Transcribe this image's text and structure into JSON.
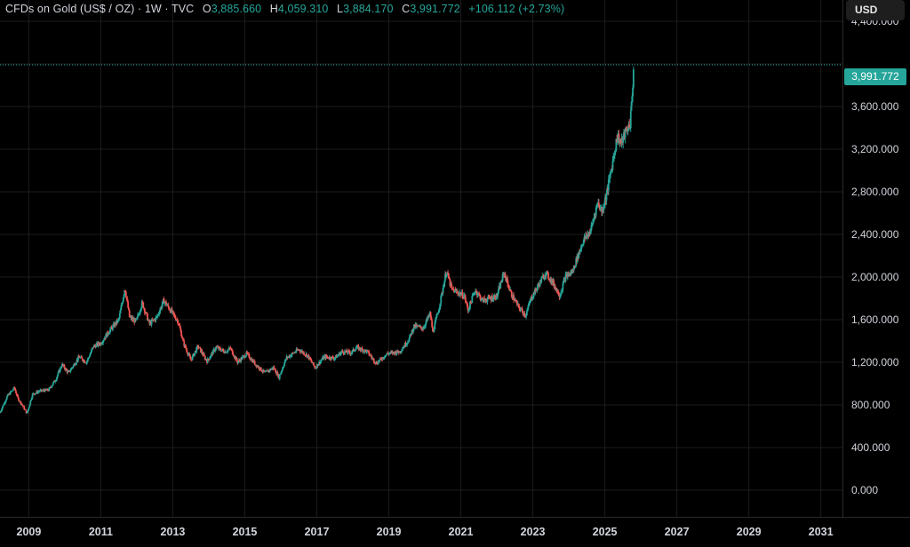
{
  "legend": {
    "symbol": "CFDs on Gold (US$ / OZ)",
    "interval": "1W",
    "source": "TVC",
    "open_label": "O",
    "open_value": "3,885.660",
    "high_label": "H",
    "high_value": "4,059.310",
    "low_label": "L",
    "low_value": "3,884.170",
    "close_label": "C",
    "close_value": "3,991.772",
    "change": "+106.112 (+2.73%)"
  },
  "currency_button": "USD",
  "last_price_tag": "3,991.772",
  "colors": {
    "background": "#000000",
    "up": "#26a69a",
    "down": "#ef5350",
    "grid": "#1c1c1c",
    "text": "#d1d4dc"
  },
  "chart_data": {
    "type": "candlestick",
    "title": "CFDs on Gold (US$ / OZ)",
    "interval": "1W",
    "ylabel": "USD",
    "ylim": [
      -250,
      4600
    ],
    "xlim": [
      2008.2,
      2031.6
    ],
    "grid": true,
    "y_ticks": [
      {
        "value": 0,
        "label": "0.000"
      },
      {
        "value": 400,
        "label": "400.000"
      },
      {
        "value": 800,
        "label": "800.000"
      },
      {
        "value": 1200,
        "label": "1,200.000"
      },
      {
        "value": 1600,
        "label": "1,600.000"
      },
      {
        "value": 2000,
        "label": "2,000.000"
      },
      {
        "value": 2400,
        "label": "2,400.000"
      },
      {
        "value": 2800,
        "label": "2,800.000"
      },
      {
        "value": 3200,
        "label": "3,200.000"
      },
      {
        "value": 3600,
        "label": "3,600.000"
      },
      {
        "value": 4000,
        "label": ""
      },
      {
        "value": 4400,
        "label": "4,400.000"
      }
    ],
    "x_ticks": [
      {
        "value": 2009,
        "label": "2009"
      },
      {
        "value": 2011,
        "label": "2011"
      },
      {
        "value": 2013,
        "label": "2013"
      },
      {
        "value": 2015,
        "label": "2015"
      },
      {
        "value": 2017,
        "label": "2017"
      },
      {
        "value": 2019,
        "label": "2019"
      },
      {
        "value": 2021,
        "label": "2021"
      },
      {
        "value": 2023,
        "label": "2023"
      },
      {
        "value": 2025,
        "label": "2025"
      },
      {
        "value": 2027,
        "label": "2027"
      },
      {
        "value": 2029,
        "label": "2029"
      },
      {
        "value": 2031,
        "label": "2031"
      }
    ],
    "last_price": 3991.772,
    "price_path": [
      [
        2008.2,
        730
      ],
      [
        2008.4,
        880
      ],
      [
        2008.6,
        960
      ],
      [
        2008.7,
        860
      ],
      [
        2008.85,
        780
      ],
      [
        2008.95,
        720
      ],
      [
        2009.1,
        900
      ],
      [
        2009.3,
        930
      ],
      [
        2009.55,
        940
      ],
      [
        2009.75,
        1040
      ],
      [
        2009.92,
        1180
      ],
      [
        2010.1,
        1100
      ],
      [
        2010.4,
        1250
      ],
      [
        2010.6,
        1200
      ],
      [
        2010.8,
        1350
      ],
      [
        2011.0,
        1380
      ],
      [
        2011.25,
        1500
      ],
      [
        2011.5,
        1600
      ],
      [
        2011.67,
        1900
      ],
      [
        2011.8,
        1620
      ],
      [
        2011.98,
        1580
      ],
      [
        2012.15,
        1760
      ],
      [
        2012.35,
        1560
      ],
      [
        2012.55,
        1620
      ],
      [
        2012.75,
        1780
      ],
      [
        2012.95,
        1680
      ],
      [
        2013.15,
        1580
      ],
      [
        2013.3,
        1380
      ],
      [
        2013.5,
        1220
      ],
      [
        2013.7,
        1350
      ],
      [
        2013.95,
        1210
      ],
      [
        2014.2,
        1340
      ],
      [
        2014.45,
        1300
      ],
      [
        2014.6,
        1330
      ],
      [
        2014.8,
        1200
      ],
      [
        2015.05,
        1280
      ],
      [
        2015.3,
        1180
      ],
      [
        2015.55,
        1100
      ],
      [
        2015.8,
        1150
      ],
      [
        2015.95,
        1060
      ],
      [
        2016.15,
        1240
      ],
      [
        2016.5,
        1320
      ],
      [
        2016.75,
        1260
      ],
      [
        2016.95,
        1150
      ],
      [
        2017.2,
        1250
      ],
      [
        2017.5,
        1240
      ],
      [
        2017.7,
        1300
      ],
      [
        2017.95,
        1290
      ],
      [
        2018.1,
        1340
      ],
      [
        2018.4,
        1300
      ],
      [
        2018.65,
        1190
      ],
      [
        2018.95,
        1280
      ],
      [
        2019.3,
        1300
      ],
      [
        2019.55,
        1410
      ],
      [
        2019.7,
        1540
      ],
      [
        2019.95,
        1520
      ],
      [
        2020.15,
        1660
      ],
      [
        2020.22,
        1480
      ],
      [
        2020.4,
        1720
      ],
      [
        2020.6,
        2060
      ],
      [
        2020.75,
        1880
      ],
      [
        2020.9,
        1860
      ],
      [
        2021.1,
        1820
      ],
      [
        2021.2,
        1690
      ],
      [
        2021.4,
        1880
      ],
      [
        2021.6,
        1780
      ],
      [
        2021.8,
        1800
      ],
      [
        2022.0,
        1820
      ],
      [
        2022.2,
        2040
      ],
      [
        2022.4,
        1840
      ],
      [
        2022.6,
        1720
      ],
      [
        2022.8,
        1640
      ],
      [
        2022.95,
        1800
      ],
      [
        2023.15,
        1920
      ],
      [
        2023.35,
        2040
      ],
      [
        2023.55,
        1950
      ],
      [
        2023.75,
        1830
      ],
      [
        2023.9,
        2000
      ],
      [
        2024.1,
        2050
      ],
      [
        2024.25,
        2200
      ],
      [
        2024.4,
        2340
      ],
      [
        2024.6,
        2430
      ],
      [
        2024.8,
        2700
      ],
      [
        2024.92,
        2620
      ],
      [
        2025.05,
        2780
      ],
      [
        2025.2,
        3050
      ],
      [
        2025.35,
        3330
      ],
      [
        2025.45,
        3250
      ],
      [
        2025.55,
        3340
      ],
      [
        2025.7,
        3440
      ],
      [
        2025.77,
        3760
      ],
      [
        2025.8,
        3991.772
      ]
    ]
  }
}
